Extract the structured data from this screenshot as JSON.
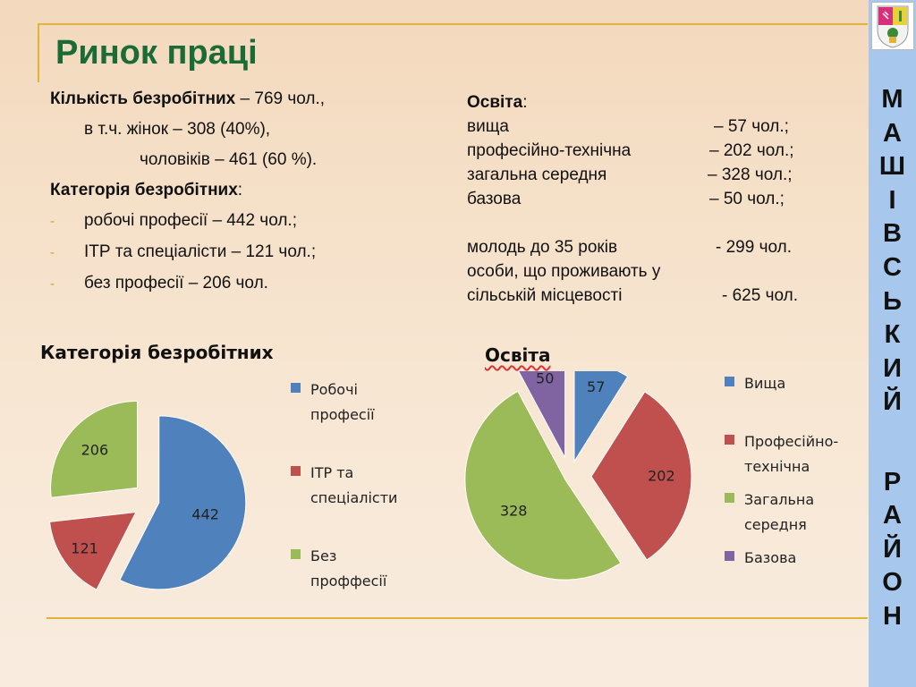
{
  "title": "Ринок праці",
  "left": {
    "line1_bold": "Кількість безробітних",
    "line1_rest": " – 769 чол.,",
    "line2": "в т.ч. жінок – 308 (40%),",
    "line3": "чоловіків – 461 (60 %).",
    "cat_bold": "Категорія безробітних",
    "cat_colon": ":",
    "bullet_char": "-",
    "bullets": [
      "робочі професії – 442 чол.;",
      "ІТР та спеціалісти – 121 чол.;",
      "без професії – 206 чол."
    ]
  },
  "right": {
    "heading": "Освіта",
    "heading_colon": ":",
    "rows": [
      {
        "label": "вища",
        "value": "– 57  чол.;"
      },
      {
        "label": "професійно-технічна",
        "value": "– 202 чол.;"
      },
      {
        "label": "загальна середня",
        "value": "– 328 чол.;"
      },
      {
        "label": "базова",
        "value": "–  50  чол.;"
      }
    ],
    "youth_label": "молодь до 35 років",
    "youth_value": "- 299 чол.",
    "rural_label1": "особи, що проживають у",
    "rural_label2": "сільській місцевості",
    "rural_value": "- 625 чол."
  },
  "sidebar": {
    "letters": [
      "М",
      "А",
      "Ш",
      "І",
      "В",
      "С",
      "Ь",
      "К",
      "И",
      "Й",
      "Р",
      "А",
      "Й",
      "О",
      "Н"
    ]
  },
  "colors": {
    "blue": "#4f81bd",
    "red": "#c0504d",
    "green": "#9bbb59",
    "purple": "#8064a2",
    "title_green": "#1a6b35",
    "gold": "#e0b43a",
    "sidebar": "#a7c8ec"
  },
  "chart_data": [
    {
      "type": "pie",
      "title": "Категорія безробітних",
      "categories": [
        "Робочі професії",
        "ІТР та спеціалісти",
        "Без проффесії"
      ],
      "values": [
        442,
        121,
        206
      ],
      "legend": "right",
      "legend_lines": [
        [
          "Робочі",
          "професії"
        ],
        [
          "ІТР та",
          "спеціалісти"
        ],
        [
          "Без",
          "проффесії"
        ]
      ],
      "colors": [
        "#4f81bd",
        "#c0504d",
        "#9bbb59"
      ]
    },
    {
      "type": "pie",
      "title": "Освіта",
      "categories": [
        "Вища",
        "Професійно-технічна",
        "Загальна середня",
        "Базова"
      ],
      "values": [
        57,
        202,
        328,
        50
      ],
      "legend": "right",
      "legend_lines": [
        [
          "Вища"
        ],
        [
          "Професійно-",
          "технічна"
        ],
        [
          "Загальна",
          "середня"
        ],
        [
          "Базова"
        ]
      ],
      "colors": [
        "#4f81bd",
        "#c0504d",
        "#9bbb59",
        "#8064a2"
      ]
    }
  ]
}
